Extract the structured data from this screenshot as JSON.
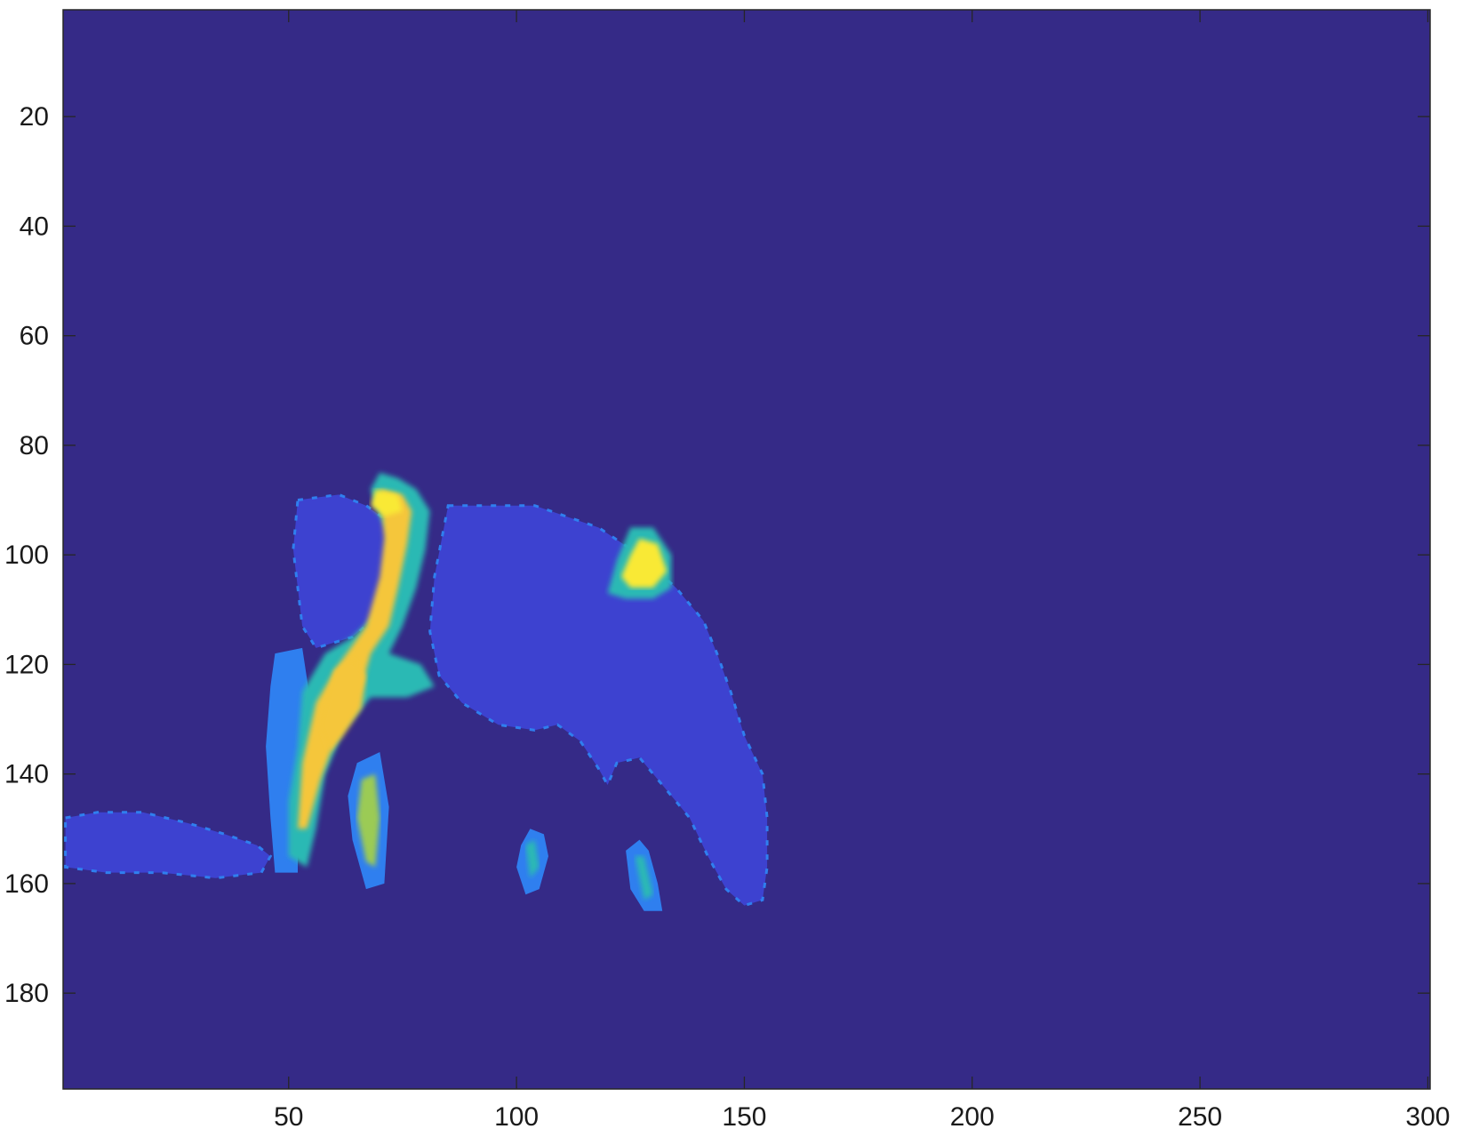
{
  "chart_data": {
    "type": "heatmap",
    "title": "",
    "xlabel": "",
    "ylabel": "",
    "xlim": [
      0.5,
      300.5
    ],
    "ylim": [
      0.5,
      197.5
    ],
    "y_direction": "reversed",
    "xticks": [
      50,
      100,
      150,
      200,
      250,
      300
    ],
    "xtick_labels": [
      "50",
      "100",
      "150",
      "200",
      "250",
      "300"
    ],
    "yticks": [
      20,
      40,
      60,
      80,
      100,
      120,
      140,
      160,
      180
    ],
    "ytick_labels": [
      "20",
      "40",
      "60",
      "80",
      "100",
      "120",
      "140",
      "160",
      "180"
    ],
    "grid": false,
    "legend": "none",
    "colormap": "parula",
    "colors": {
      "background": "#352A87",
      "region": "#3D42D0",
      "edge": "#2F7FEF",
      "mid": "#2AB9B4",
      "midhigh": "#9BCB55",
      "high": "#F5C63A",
      "peak": "#F9E934"
    },
    "regions": [
      {
        "name": "body",
        "value": 0.12,
        "poly": [
          [
            85,
            91
          ],
          [
            104,
            91
          ],
          [
            118,
            95
          ],
          [
            127,
            100
          ],
          [
            135,
            106
          ],
          [
            141,
            112
          ],
          [
            144,
            118
          ],
          [
            147,
            125
          ],
          [
            150,
            133
          ],
          [
            154,
            140
          ],
          [
            155,
            148
          ],
          [
            155,
            157
          ],
          [
            154,
            163
          ],
          [
            150,
            164
          ],
          [
            146,
            161
          ],
          [
            142,
            155
          ],
          [
            138,
            148
          ],
          [
            133,
            143
          ],
          [
            127,
            137
          ],
          [
            122,
            138
          ],
          [
            120,
            142
          ],
          [
            118,
            139
          ],
          [
            114,
            134
          ],
          [
            109,
            131
          ],
          [
            104,
            132
          ],
          [
            96,
            131
          ],
          [
            88,
            127
          ],
          [
            83,
            122
          ],
          [
            81,
            114
          ],
          [
            82,
            104
          ]
        ]
      },
      {
        "name": "head",
        "value": 0.12,
        "poly": [
          [
            52,
            90
          ],
          [
            61,
            89
          ],
          [
            67,
            91
          ],
          [
            72,
            94
          ],
          [
            76,
            98
          ],
          [
            76,
            104
          ],
          [
            71,
            110
          ],
          [
            64,
            115
          ],
          [
            56,
            117
          ],
          [
            53,
            113
          ],
          [
            52,
            106
          ],
          [
            51,
            99
          ]
        ]
      },
      {
        "name": "shadow",
        "value": 0.12,
        "poly": [
          [
            1,
            148
          ],
          [
            8,
            147
          ],
          [
            18,
            147
          ],
          [
            28,
            149
          ],
          [
            36,
            151
          ],
          [
            43,
            153
          ],
          [
            46,
            155
          ],
          [
            44,
            158
          ],
          [
            34,
            159
          ],
          [
            22,
            158
          ],
          [
            10,
            158
          ],
          [
            1,
            157
          ]
        ]
      },
      {
        "name": "leg-left",
        "value": 0.3,
        "poly": [
          [
            47,
            118
          ],
          [
            53,
            117
          ],
          [
            55,
            128
          ],
          [
            54,
            140
          ],
          [
            52,
            150
          ],
          [
            52,
            158
          ],
          [
            47,
            158
          ],
          [
            46,
            148
          ],
          [
            45,
            135
          ],
          [
            46,
            124
          ]
        ]
      },
      {
        "name": "leg-right",
        "value": 0.3,
        "poly": [
          [
            65,
            138
          ],
          [
            70,
            136
          ],
          [
            72,
            146
          ],
          [
            71,
            160
          ],
          [
            67,
            161
          ],
          [
            64,
            152
          ],
          [
            63,
            144
          ]
        ]
      },
      {
        "name": "leg-small-1",
        "value": 0.3,
        "poly": [
          [
            101,
            153
          ],
          [
            103,
            150
          ],
          [
            106,
            151
          ],
          [
            107,
            155
          ],
          [
            105,
            161
          ],
          [
            102,
            162
          ],
          [
            100,
            157
          ]
        ]
      },
      {
        "name": "leg-small-2",
        "value": 0.3,
        "poly": [
          [
            124,
            154
          ],
          [
            127,
            152
          ],
          [
            129,
            154
          ],
          [
            131,
            160
          ],
          [
            132,
            165
          ],
          [
            128,
            165
          ],
          [
            125,
            161
          ]
        ]
      },
      {
        "name": "neck-outer",
        "value": 0.55,
        "poly": [
          [
            70,
            85
          ],
          [
            74,
            86
          ],
          [
            78,
            88
          ],
          [
            81,
            92
          ],
          [
            80,
            99
          ],
          [
            78,
            106
          ],
          [
            75,
            113
          ],
          [
            72,
            118
          ],
          [
            79,
            120
          ],
          [
            82,
            124
          ],
          [
            76,
            126
          ],
          [
            68,
            126
          ],
          [
            62,
            132
          ],
          [
            58,
            140
          ],
          [
            56,
            150
          ],
          [
            54,
            157
          ],
          [
            50,
            155
          ],
          [
            50,
            145
          ],
          [
            52,
            135
          ],
          [
            53,
            125
          ],
          [
            58,
            118
          ],
          [
            64,
            115
          ],
          [
            69,
            111
          ],
          [
            72,
            104
          ],
          [
            72,
            96
          ],
          [
            70,
            93
          ],
          [
            68,
            88
          ]
        ]
      },
      {
        "name": "neck-inner",
        "value": 0.85,
        "poly": [
          [
            70,
            88
          ],
          [
            75,
            89
          ],
          [
            77,
            92
          ],
          [
            76,
            98
          ],
          [
            74,
            106
          ],
          [
            72,
            113
          ],
          [
            68,
            118
          ],
          [
            66,
            124
          ],
          [
            61,
            132
          ],
          [
            57,
            141
          ],
          [
            54,
            150
          ],
          [
            52,
            150
          ],
          [
            53,
            138
          ],
          [
            56,
            127
          ],
          [
            61,
            120
          ],
          [
            67,
            113
          ],
          [
            70,
            104
          ],
          [
            71,
            97
          ]
        ]
      },
      {
        "name": "neck-peak",
        "value": 1.0,
        "poly": [
          [
            69,
            88
          ],
          [
            74,
            89
          ],
          [
            75,
            92
          ],
          [
            71,
            93
          ],
          [
            68,
            91
          ]
        ]
      },
      {
        "name": "head-blob",
        "value": 0.9,
        "poly": [
          [
            60,
            121
          ],
          [
            64,
            119
          ],
          [
            67,
            122
          ],
          [
            66,
            128
          ],
          [
            62,
            133
          ],
          [
            59,
            136
          ],
          [
            57,
            131
          ]
        ]
      },
      {
        "name": "leg-right-inner",
        "value": 0.7,
        "poly": [
          [
            66,
            141
          ],
          [
            69,
            140
          ],
          [
            70,
            148
          ],
          [
            69,
            157
          ],
          [
            67,
            156
          ],
          [
            65,
            148
          ]
        ]
      },
      {
        "name": "leg-small-1-inner",
        "value": 0.6,
        "poly": [
          [
            102,
            153
          ],
          [
            104,
            152
          ],
          [
            105,
            157
          ],
          [
            103,
            159
          ]
        ]
      },
      {
        "name": "leg-small-2-inner",
        "value": 0.6,
        "poly": [
          [
            126,
            155
          ],
          [
            128,
            155
          ],
          [
            130,
            162
          ],
          [
            128,
            163
          ]
        ]
      },
      {
        "name": "hump-outer",
        "value": 0.55,
        "poly": [
          [
            125,
            95
          ],
          [
            130,
            95
          ],
          [
            134,
            100
          ],
          [
            134,
            106
          ],
          [
            130,
            108
          ],
          [
            124,
            108
          ],
          [
            120,
            107
          ],
          [
            122,
            101
          ]
        ]
      },
      {
        "name": "hump-inner",
        "value": 0.95,
        "poly": [
          [
            127,
            97
          ],
          [
            131,
            98
          ],
          [
            133,
            103
          ],
          [
            130,
            106
          ],
          [
            125,
            106
          ],
          [
            123,
            104
          ],
          [
            125,
            100
          ]
        ]
      }
    ]
  }
}
